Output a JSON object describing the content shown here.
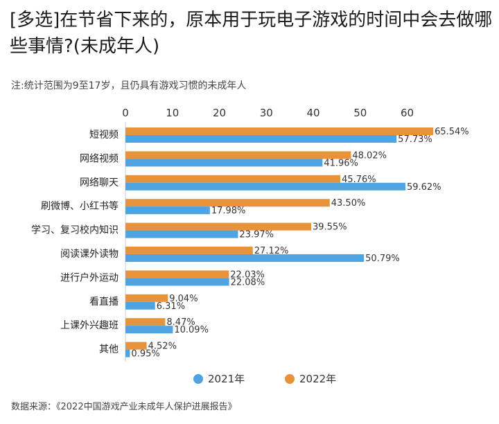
{
  "header": {
    "title": "[多选]在节省下来的，原本用于玩电子游戏的时间中会去做哪些事情?(未成年人)",
    "note": "注:统计范围为9至17岁，且仍具有游戏习惯的未成年人"
  },
  "footer": {
    "source": "数据来源：《2022中国游戏产业未成年人保护进展报告》"
  },
  "chart_data": {
    "type": "bar",
    "orientation": "horizontal",
    "xlim": [
      0,
      67
    ],
    "ticks": [
      0,
      10,
      20,
      30,
      40,
      50,
      60
    ],
    "categories": [
      "短视频",
      "网络视频",
      "网络聊天",
      "刷微博、小红书等",
      "学习、复习校内知识",
      "阅读课外读物",
      "进行户外运动",
      "看直播",
      "上课外兴趣班",
      "其他"
    ],
    "series": [
      {
        "name": "2022年",
        "color": "#e8923a",
        "values": [
          65.54,
          48.02,
          45.76,
          43.5,
          39.55,
          27.12,
          22.03,
          9.04,
          8.47,
          4.52
        ],
        "labels": [
          "65.54%",
          "48.02%",
          "45.76%",
          "43.50%",
          "39.55%",
          "27.12%",
          "22.03%",
          "9.04%",
          "8.47%",
          "4.52%"
        ]
      },
      {
        "name": "2021年",
        "color": "#4fa3e0",
        "values": [
          57.73,
          41.96,
          59.62,
          17.98,
          23.97,
          50.79,
          22.08,
          6.31,
          10.09,
          0.95
        ],
        "labels": [
          "57.73%",
          "41.96%",
          "59.62%",
          "17.98%",
          "23.97%",
          "50.79%",
          "22.08%",
          "6.31%",
          "10.09%",
          "0.95%"
        ]
      }
    ],
    "legend": {
      "position": "bottom",
      "items": [
        {
          "label": "2021年",
          "color": "#4fa3e0"
        },
        {
          "label": "2022年",
          "color": "#e8923a"
        }
      ]
    },
    "grid": false
  }
}
